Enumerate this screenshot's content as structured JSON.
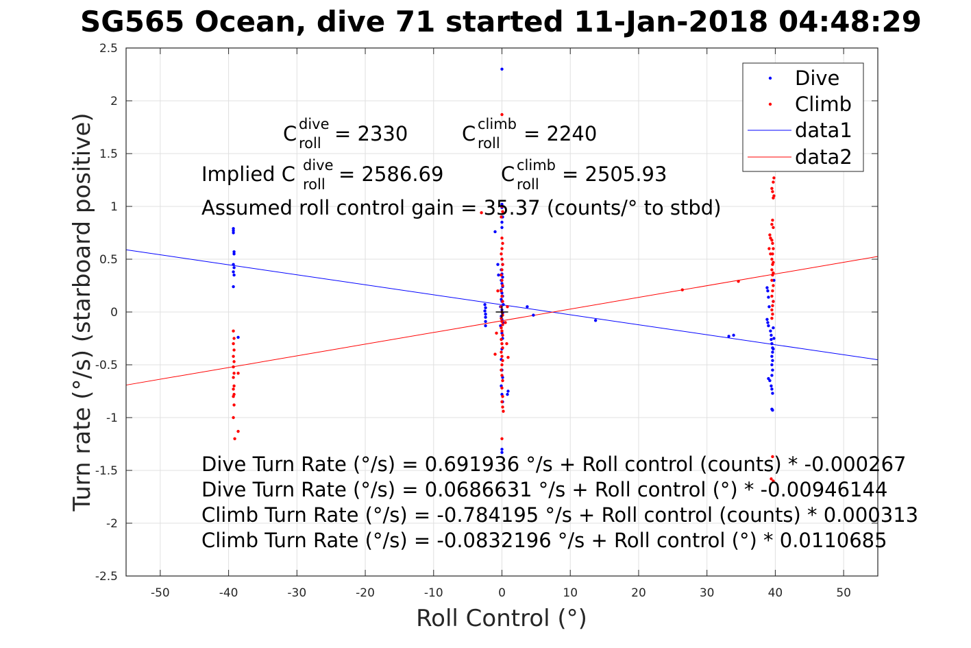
{
  "chart_data": {
    "type": "scatter",
    "title": "SG565 Ocean, dive 71 started 11-Jan-2018 04:48:29",
    "xlabel": "Roll Control (°)",
    "ylabel": "Turn rate (°/s) (starboard positive)",
    "xlim": [
      -55,
      55
    ],
    "ylim": [
      -2.5,
      2.5
    ],
    "xticks": [
      "-50",
      "-40",
      "-30",
      "-20",
      "-10",
      "0",
      "10",
      "20",
      "30",
      "40",
      "50"
    ],
    "yticks": [
      "2.5",
      "2",
      "1.5",
      "1",
      "0.5",
      "0",
      "-0.5",
      "-1",
      "-1.5",
      "-2",
      "-2.5"
    ],
    "grid": true,
    "legend_position": "top-right",
    "legend": [
      "Dive",
      "Climb",
      "data1",
      "data2"
    ],
    "colors": {
      "dive": "#0000ff",
      "climb": "#ff0000",
      "axis": "#262626",
      "grid": "#e0e0e0"
    },
    "series": [
      {
        "name": "Dive",
        "points": [
          [
            -39.3,
            0.79
          ],
          [
            -39.3,
            0.77
          ],
          [
            -39.3,
            0.75
          ],
          [
            -39.2,
            0.57
          ],
          [
            -39.2,
            0.55
          ],
          [
            -39.3,
            0.45
          ],
          [
            -39.2,
            0.42
          ],
          [
            -39.3,
            0.38
          ],
          [
            -39.2,
            0.35
          ],
          [
            -39.3,
            0.24
          ],
          [
            -38.6,
            -0.24
          ],
          [
            -2.5,
            0.07
          ],
          [
            -2.4,
            0.04
          ],
          [
            -2.5,
            0.01
          ],
          [
            -2.4,
            -0.02
          ],
          [
            -2.4,
            -0.05
          ],
          [
            -2.4,
            -0.09
          ],
          [
            -2.4,
            -0.13
          ],
          [
            -1.0,
            0.76
          ],
          [
            -0.6,
            0.45
          ],
          [
            -0.5,
            0.35
          ],
          [
            0,
            2.3
          ],
          [
            0,
            1.02
          ],
          [
            0,
            0.99
          ],
          [
            0.1,
            0.9
          ],
          [
            0,
            0.85
          ],
          [
            0,
            0.8
          ],
          [
            0,
            0.5
          ],
          [
            0.1,
            0.45
          ],
          [
            -0.1,
            0.4
          ],
          [
            0,
            0.36
          ],
          [
            0.1,
            0.33
          ],
          [
            -0.1,
            0.3
          ],
          [
            0,
            0.27
          ],
          [
            0.1,
            0.24
          ],
          [
            -0.1,
            0.21
          ],
          [
            0,
            0.18
          ],
          [
            0.1,
            0.15
          ],
          [
            -0.1,
            0.12
          ],
          [
            0,
            0.1
          ],
          [
            0.2,
            0.07
          ],
          [
            -0.2,
            0.05
          ],
          [
            0,
            0.02
          ],
          [
            0.1,
            -0.01
          ],
          [
            -0.1,
            -0.04
          ],
          [
            0,
            -0.07
          ],
          [
            0.2,
            -0.1
          ],
          [
            -0.2,
            -0.13
          ],
          [
            0,
            -0.2
          ],
          [
            0.1,
            -0.25
          ],
          [
            0,
            -0.35
          ],
          [
            -0.1,
            -0.45
          ],
          [
            0,
            -0.55
          ],
          [
            0.1,
            -0.62
          ],
          [
            -0.1,
            -0.7
          ],
          [
            0,
            -0.78
          ],
          [
            0.1,
            -0.85
          ],
          [
            0,
            -1.3
          ],
          [
            0,
            -1.33
          ],
          [
            0.9,
            -0.75
          ],
          [
            0.8,
            -0.78
          ],
          [
            3.7,
            0.05
          ],
          [
            4.6,
            -0.03
          ],
          [
            13.7,
            -0.08
          ],
          [
            33.2,
            -0.23
          ],
          [
            33.9,
            -0.22
          ],
          [
            38.8,
            0.23
          ],
          [
            38.9,
            0.2
          ],
          [
            39.0,
            0.14
          ],
          [
            39.1,
            0.05
          ],
          [
            38.8,
            -0.07
          ],
          [
            38.9,
            -0.1
          ],
          [
            39.0,
            -0.13
          ],
          [
            39.3,
            -0.18
          ],
          [
            39.4,
            -0.22
          ],
          [
            39.4,
            -0.26
          ],
          [
            39.5,
            -0.3
          ],
          [
            39.6,
            -0.34
          ],
          [
            39.6,
            -0.38
          ],
          [
            39.5,
            -0.42
          ],
          [
            39.6,
            -0.46
          ],
          [
            39.5,
            -0.5
          ],
          [
            39.6,
            -0.55
          ],
          [
            39.5,
            -0.6
          ],
          [
            39.0,
            -0.63
          ],
          [
            39.2,
            -0.65
          ],
          [
            39.4,
            -0.7
          ],
          [
            39.5,
            -0.73
          ],
          [
            39.6,
            -0.77
          ],
          [
            39.5,
            -0.92
          ],
          [
            39.6,
            -0.93
          ],
          [
            39.7,
            -0.15
          ],
          [
            39.8,
            -0.25
          ],
          [
            39.7,
            -0.35
          ],
          [
            39.8,
            0.3
          ],
          [
            39.7,
            0.1
          ]
        ]
      },
      {
        "name": "Climb",
        "points": [
          [
            -39.3,
            -0.18
          ],
          [
            -39.2,
            -0.25
          ],
          [
            -39.3,
            -0.3
          ],
          [
            -39.2,
            -0.36
          ],
          [
            -39.3,
            -0.42
          ],
          [
            -39.2,
            -0.47
          ],
          [
            -39.3,
            -0.52
          ],
          [
            -39.2,
            -0.58
          ],
          [
            -39.3,
            -0.62
          ],
          [
            -39.2,
            -0.7
          ],
          [
            -39.3,
            -0.73
          ],
          [
            -39.2,
            -0.78
          ],
          [
            -39.3,
            -0.8
          ],
          [
            -39.2,
            -0.88
          ],
          [
            -39.3,
            -1.0
          ],
          [
            -39.1,
            -1.2
          ],
          [
            -38.6,
            -1.13
          ],
          [
            -38.6,
            -0.58
          ],
          [
            -3.0,
            0.94
          ],
          [
            -1.0,
            -0.4
          ],
          [
            -0.8,
            -0.2
          ],
          [
            -0.6,
            0.2
          ],
          [
            0,
            1.87
          ],
          [
            0,
            1.0
          ],
          [
            0.1,
            0.95
          ],
          [
            -0.1,
            0.9
          ],
          [
            0,
            0.7
          ],
          [
            0.1,
            0.65
          ],
          [
            0,
            0.6
          ],
          [
            -0.1,
            0.55
          ],
          [
            0,
            0.5
          ],
          [
            0.1,
            0.45
          ],
          [
            0,
            0.4
          ],
          [
            -0.1,
            0.35
          ],
          [
            0,
            0.3
          ],
          [
            0.1,
            0.25
          ],
          [
            -0.1,
            0.2
          ],
          [
            0,
            0.15
          ],
          [
            0.1,
            0.1
          ],
          [
            -0.1,
            0.05
          ],
          [
            0,
            0.0
          ],
          [
            0.1,
            -0.03
          ],
          [
            -0.1,
            -0.06
          ],
          [
            0,
            -0.09
          ],
          [
            0.1,
            -0.12
          ],
          [
            -0.1,
            -0.15
          ],
          [
            0,
            -0.18
          ],
          [
            0.1,
            -0.22
          ],
          [
            -0.1,
            -0.26
          ],
          [
            0,
            -0.3
          ],
          [
            0.1,
            -0.34
          ],
          [
            -0.1,
            -0.38
          ],
          [
            0,
            -0.42
          ],
          [
            0.1,
            -0.46
          ],
          [
            0,
            -0.5
          ],
          [
            -0.1,
            -0.55
          ],
          [
            0,
            -0.6
          ],
          [
            0.1,
            -0.65
          ],
          [
            0,
            -0.72
          ],
          [
            0.1,
            -0.8
          ],
          [
            0,
            -0.85
          ],
          [
            0.1,
            -0.9
          ],
          [
            0.2,
            -0.94
          ],
          [
            0,
            -1.2
          ],
          [
            0.9,
            -0.43
          ],
          [
            0.7,
            -0.3
          ],
          [
            0.5,
            -0.1
          ],
          [
            0.8,
            0.05
          ],
          [
            26.4,
            0.21
          ],
          [
            34.6,
            0.29
          ],
          [
            39.8,
            1.27
          ],
          [
            39.7,
            1.23
          ],
          [
            39.5,
            1.17
          ],
          [
            39.6,
            1.14
          ],
          [
            39.8,
            1.1
          ],
          [
            39.7,
            1.08
          ],
          [
            39.6,
            0.87
          ],
          [
            39.5,
            0.83
          ],
          [
            39.7,
            0.8
          ],
          [
            39.2,
            0.73
          ],
          [
            39.3,
            0.7
          ],
          [
            39.5,
            0.68
          ],
          [
            39.6,
            0.65
          ],
          [
            39.7,
            0.6
          ],
          [
            39.6,
            0.55
          ],
          [
            39.5,
            0.5
          ],
          [
            39.7,
            0.47
          ],
          [
            39.6,
            0.45
          ],
          [
            39.5,
            0.4
          ],
          [
            39.7,
            0.37
          ],
          [
            39.6,
            0.35
          ],
          [
            39.5,
            0.3
          ],
          [
            39.7,
            0.25
          ],
          [
            39.6,
            0.2
          ],
          [
            39.5,
            0.15
          ],
          [
            39.7,
            0.1
          ],
          [
            39.6,
            0.06
          ],
          [
            39.5,
            0.02
          ],
          [
            39.6,
            -0.02
          ],
          [
            39.5,
            -0.06
          ],
          [
            39.6,
            -1.37
          ],
          [
            39.7,
            -1.6
          ],
          [
            39.4,
            -1.58
          ],
          [
            39.1,
            0.6
          ],
          [
            39.3,
            0.55
          ]
        ]
      },
      {
        "name": "data1",
        "line": [
          [
            -55,
            0.589
          ],
          [
            55,
            -0.452
          ]
        ]
      },
      {
        "name": "data2",
        "line": [
          [
            -55,
            -0.692
          ],
          [
            55,
            0.526
          ]
        ]
      }
    ],
    "origin_marker": [
      0,
      0
    ]
  },
  "annotations": {
    "c_dive_label": "C",
    "c_dive_sup": "dive",
    "c_dive_sub": "roll",
    "c_dive_value": " = 2330",
    "c_climb_label": "C",
    "c_climb_sup": "climb",
    "c_climb_sub": "roll",
    "c_climb_value": " = 2240",
    "implied_prefix": "Implied C",
    "implied_dive_sup": "dive",
    "implied_dive_sub": "roll",
    "implied_dive_value": " = 2586.69",
    "implied_climb_label": "C",
    "implied_climb_sup": "climb",
    "implied_climb_sub": "roll",
    "implied_climb_value": " = 2505.93",
    "gain": "Assumed roll control gain = 35.37 (counts/° to stbd)",
    "eq1": "Dive Turn Rate (°/s) = 0.691936 °/s + Roll control (counts) * -0.000267",
    "eq2": "Dive Turn Rate (°/s) = 0.0686631 °/s + Roll control (°) * -0.00946144",
    "eq3": "Climb Turn Rate (°/s) = -0.784195 °/s + Roll control (counts) * 0.000313",
    "eq4": "Climb Turn Rate (°/s) = -0.0832196 °/s + Roll control (°) * 0.0110685"
  }
}
